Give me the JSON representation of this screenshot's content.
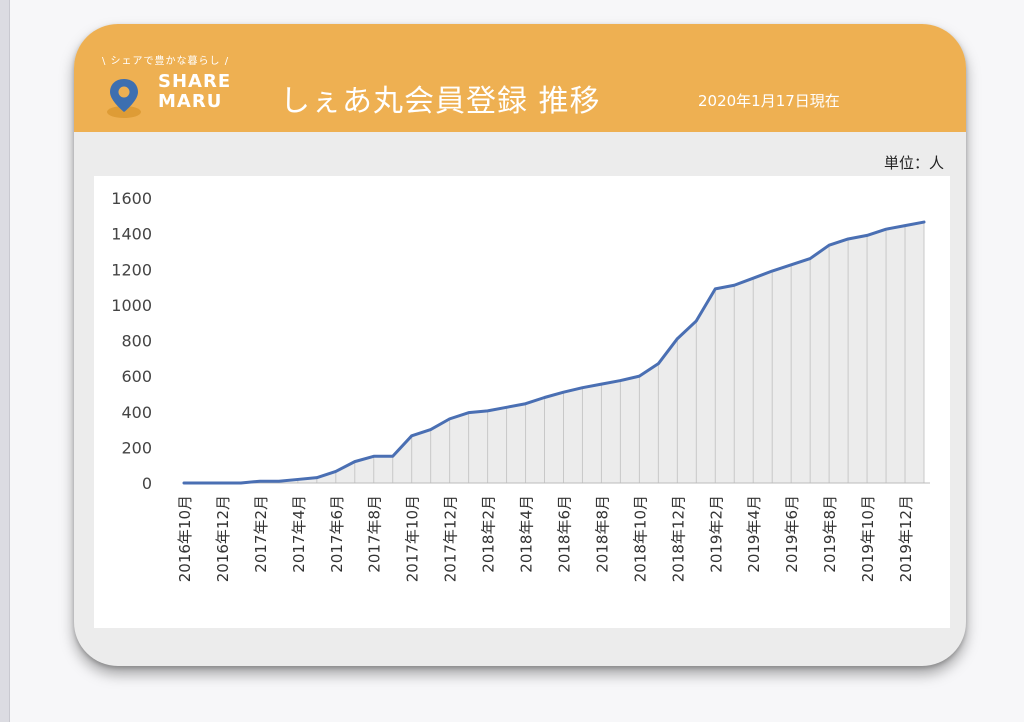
{
  "header": {
    "tagline": "\\ シェアで豊かな暮らし /",
    "logo_line1": "SHARE",
    "logo_line2": "MARU",
    "title": "しぇあ丸会員登録 推移",
    "as_of": "2020年1月17日現在",
    "logo_color": "#3d6fb0"
  },
  "unit_label": "単位：人",
  "colors": {
    "header": "#eeb052",
    "line": "#4a6fb3",
    "fill": "#ececec",
    "drop": "#c8c8c8"
  },
  "chart_data": {
    "type": "area",
    "title": "しぇあ丸会員登録 推移",
    "ylim": [
      0,
      1600
    ],
    "yticks": [
      0,
      200,
      400,
      600,
      800,
      1000,
      1200,
      1400,
      1600
    ],
    "x": [
      "2016年10月",
      "2016年11月",
      "2016年12月",
      "2017年1月",
      "2017年2月",
      "2017年3月",
      "2017年4月",
      "2017年5月",
      "2017年6月",
      "2017年7月",
      "2017年8月",
      "2017年9月",
      "2017年10月",
      "2017年11月",
      "2017年12月",
      "2018年1月",
      "2018年2月",
      "2018年3月",
      "2018年4月",
      "2018年5月",
      "2018年6月",
      "2018年7月",
      "2018年8月",
      "2018年9月",
      "2018年10月",
      "2018年11月",
      "2018年12月",
      "2019年1月",
      "2019年2月",
      "2019年3月",
      "2019年4月",
      "2019年5月",
      "2019年6月",
      "2019年7月",
      "2019年8月",
      "2019年9月",
      "2019年10月",
      "2019年11月",
      "2019年12月",
      "2020年1月"
    ],
    "xtick_labels": [
      "2016年10月",
      "",
      "2016年12月",
      "",
      "2017年2月",
      "",
      "2017年4月",
      "",
      "2017年6月",
      "",
      "2017年8月",
      "",
      "2017年10月",
      "",
      "2017年12月",
      "",
      "2018年2月",
      "",
      "2018年4月",
      "",
      "2018年6月",
      "",
      "2018年8月",
      "",
      "2018年10月",
      "",
      "2018年12月",
      "",
      "2019年2月",
      "",
      "2019年4月",
      "",
      "2019年6月",
      "",
      "2019年8月",
      "",
      "2019年10月",
      "",
      "2019年12月",
      ""
    ],
    "values": [
      0,
      0,
      0,
      0,
      10,
      10,
      20,
      30,
      65,
      120,
      150,
      150,
      265,
      300,
      360,
      395,
      405,
      425,
      445,
      480,
      510,
      535,
      555,
      575,
      600,
      670,
      810,
      910,
      1090,
      1110,
      1150,
      1190,
      1225,
      1260,
      1335,
      1370,
      1390,
      1425,
      1445,
      1465
    ]
  }
}
